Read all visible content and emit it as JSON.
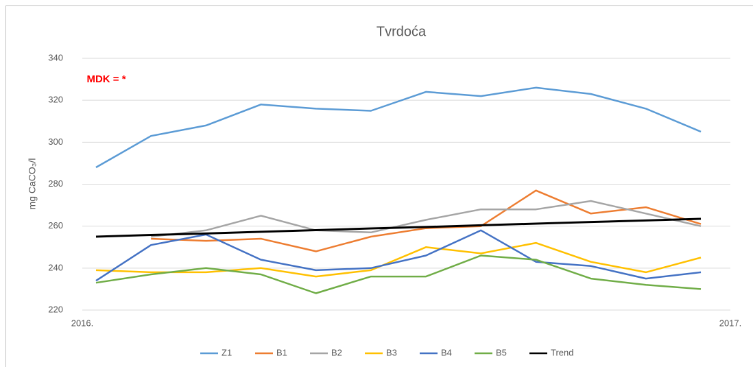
{
  "chart_data": {
    "type": "line",
    "title": "Tvrdoća",
    "y_label": "mg CaCO₃/l",
    "annotation": "MDK = *",
    "categories": [
      null,
      null,
      null,
      null,
      null,
      null,
      null,
      null,
      null,
      null,
      null,
      null
    ],
    "x_end_labels": [
      "2016.",
      "2017."
    ],
    "ylim": [
      220,
      340
    ],
    "yticks": [
      220,
      240,
      260,
      280,
      300,
      320,
      340
    ],
    "grid": true,
    "legend": "bottom",
    "series": [
      {
        "name": "Z1",
        "color": "#5b9bd5",
        "values": [
          288,
          303,
          308,
          318,
          316,
          315,
          324,
          322,
          326,
          323,
          316,
          305
        ]
      },
      {
        "name": "B1",
        "color": "#ed7d31",
        "values": [
          null,
          254,
          253,
          254,
          248,
          255,
          259,
          260,
          277,
          266,
          269,
          261
        ]
      },
      {
        "name": "B2",
        "color": "#a5a5a5",
        "values": [
          null,
          255,
          258,
          265,
          258,
          257,
          263,
          268,
          268,
          272,
          266,
          260
        ]
      },
      {
        "name": "B3",
        "color": "#ffc000",
        "values": [
          239,
          238,
          238,
          240,
          236,
          239,
          250,
          247,
          252,
          243,
          238,
          245
        ]
      },
      {
        "name": "B4",
        "color": "#4472c4",
        "values": [
          234,
          251,
          256,
          244,
          239,
          240,
          246,
          258,
          243,
          241,
          235,
          238
        ]
      },
      {
        "name": "B5",
        "color": "#70ad47",
        "values": [
          233,
          237,
          240,
          237,
          228,
          236,
          236,
          246,
          244,
          235,
          232,
          230
        ]
      },
      {
        "name": "Trend",
        "color": "#000000",
        "values": [
          255,
          255.8,
          256.5,
          257.3,
          258.1,
          258.9,
          259.6,
          260.4,
          261.2,
          262,
          262.7,
          263.5
        ]
      }
    ]
  }
}
